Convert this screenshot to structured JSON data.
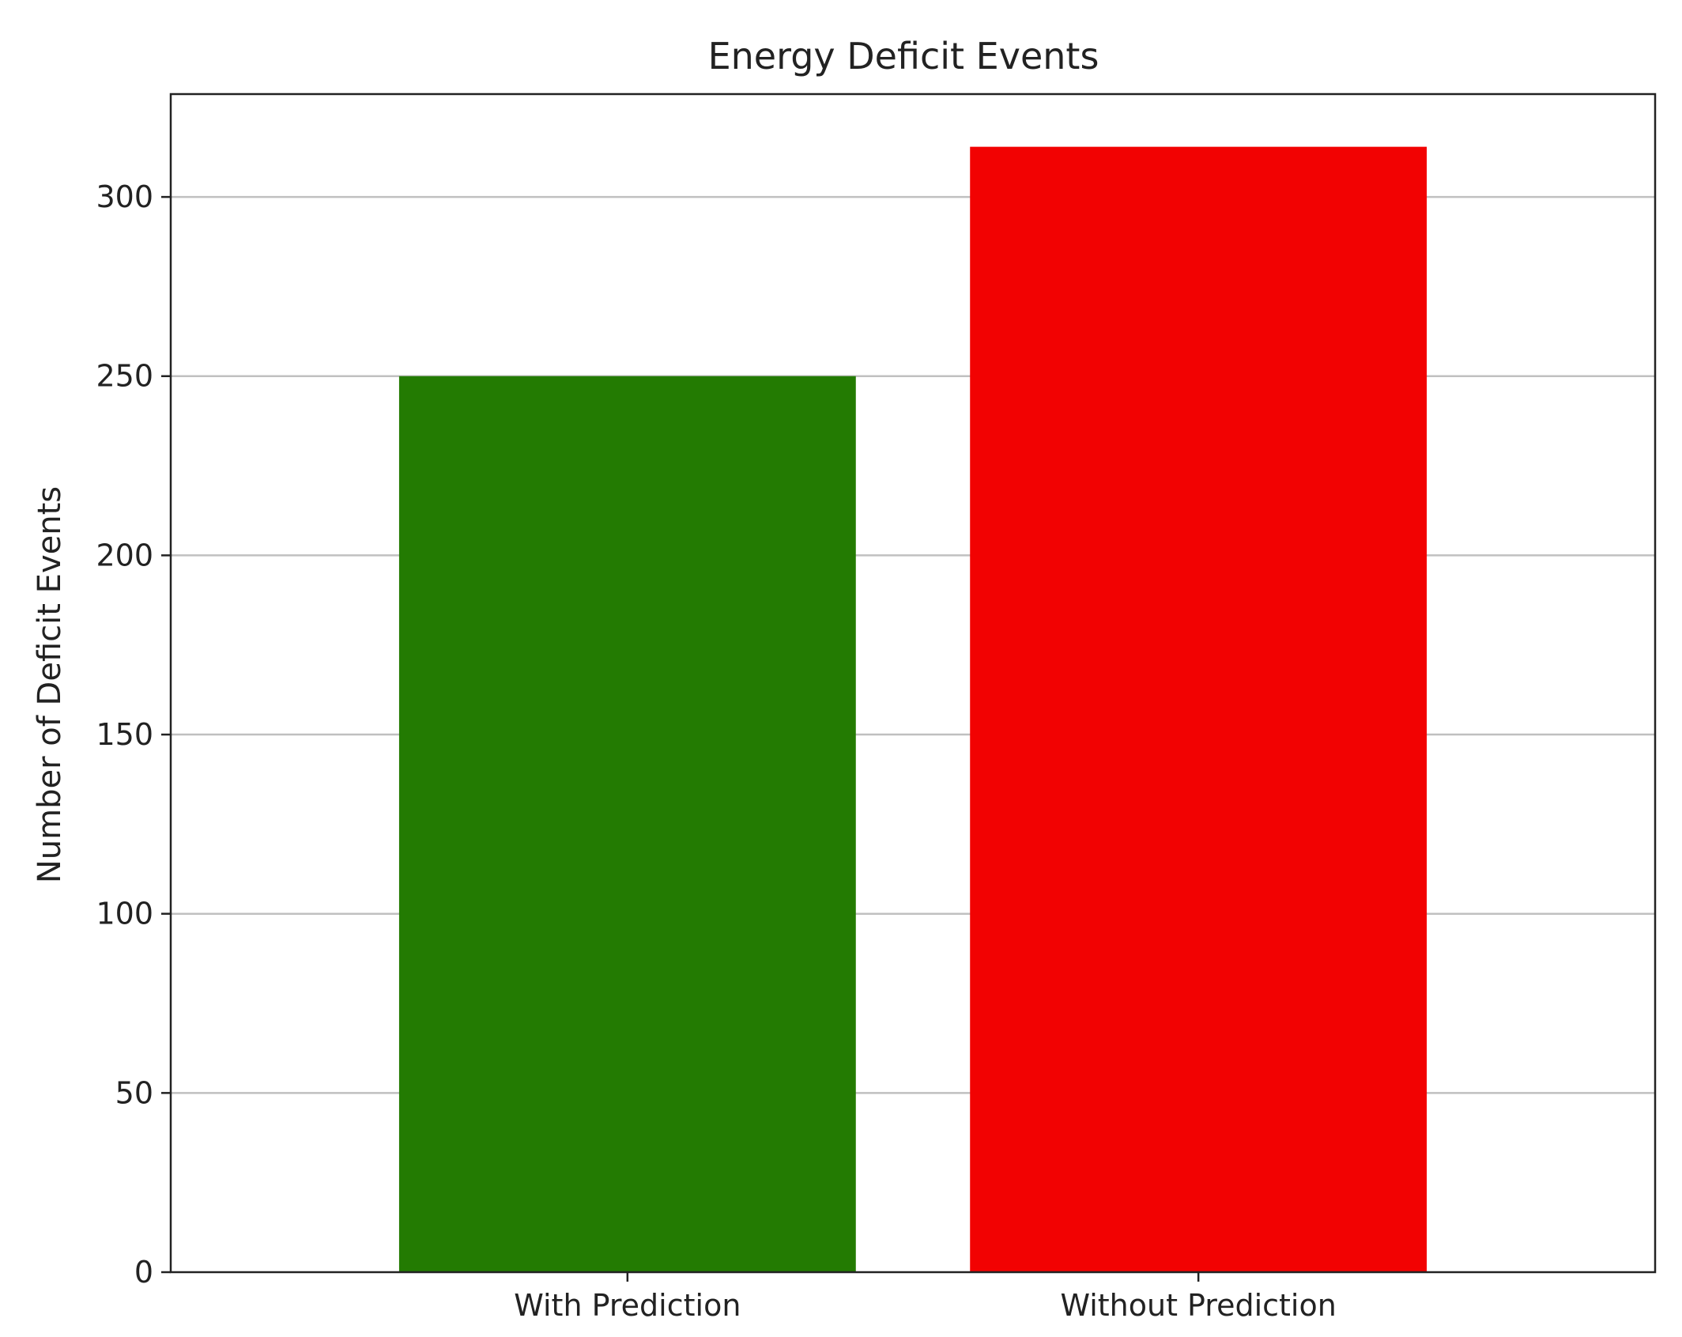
{
  "chart_data": {
    "type": "bar",
    "title": "Energy Deficit Events",
    "xlabel": "",
    "ylabel": "Number of Deficit Events",
    "categories": [
      "With Prediction",
      "Without Prediction"
    ],
    "values": [
      250,
      314
    ],
    "colors": [
      "#237b02",
      "#f20202"
    ],
    "ylim": [
      0,
      328.7
    ],
    "yticks": [
      0,
      50,
      100,
      150,
      200,
      250,
      300
    ],
    "grid": "y",
    "grid_color": "#c0c0c0",
    "legend": "none"
  }
}
